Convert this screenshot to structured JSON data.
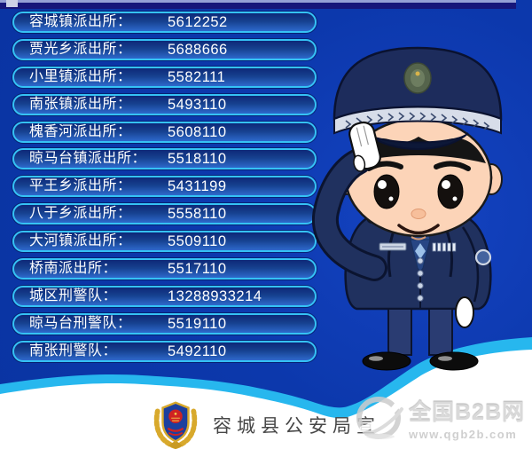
{
  "colors": {
    "background": "#0a36a8",
    "pill_border": "#35c2f5",
    "pill_fill_top": "#0d2878",
    "pill_fill_bottom": "#2e69cc",
    "wave_cyan": "#27b7ee",
    "wave_white": "#ffffff",
    "text_white": "#ffffff",
    "footer_text": "#474747"
  },
  "directory": {
    "rows": [
      {
        "label": "容城镇派出所：",
        "number": "5612252"
      },
      {
        "label": "贾光乡派出所：",
        "number": "5688666"
      },
      {
        "label": "小里镇派出所：",
        "number": "5582111"
      },
      {
        "label": "南张镇派出所：",
        "number": "5493110"
      },
      {
        "label": "槐香河派出所：",
        "number": "5608110"
      },
      {
        "label": "晾马台镇派出所：",
        "number": "5518110"
      },
      {
        "label": "平王乡派出所：",
        "number": "5431199"
      },
      {
        "label": "八于乡派出所：",
        "number": "5558110"
      },
      {
        "label": "大河镇派出所：",
        "number": "5509110"
      },
      {
        "label": "桥南派出所：",
        "number": "5517110"
      },
      {
        "label": "城区刑警队：",
        "number": "13288933214"
      },
      {
        "label": "晾马台刑警队：",
        "number": "5519110"
      },
      {
        "label": "南张刑警队：",
        "number": "5492110"
      }
    ]
  },
  "footer": {
    "publisher": "容城县公安局宣"
  },
  "watermark": {
    "site_name": "全国B2B网",
    "site_url": "www.qgb2b.com"
  },
  "icons": {
    "police_badge": "gold wreath shield emblem",
    "globe": "gray swirl globe watermark",
    "officer": "saluting cartoon police officer"
  }
}
